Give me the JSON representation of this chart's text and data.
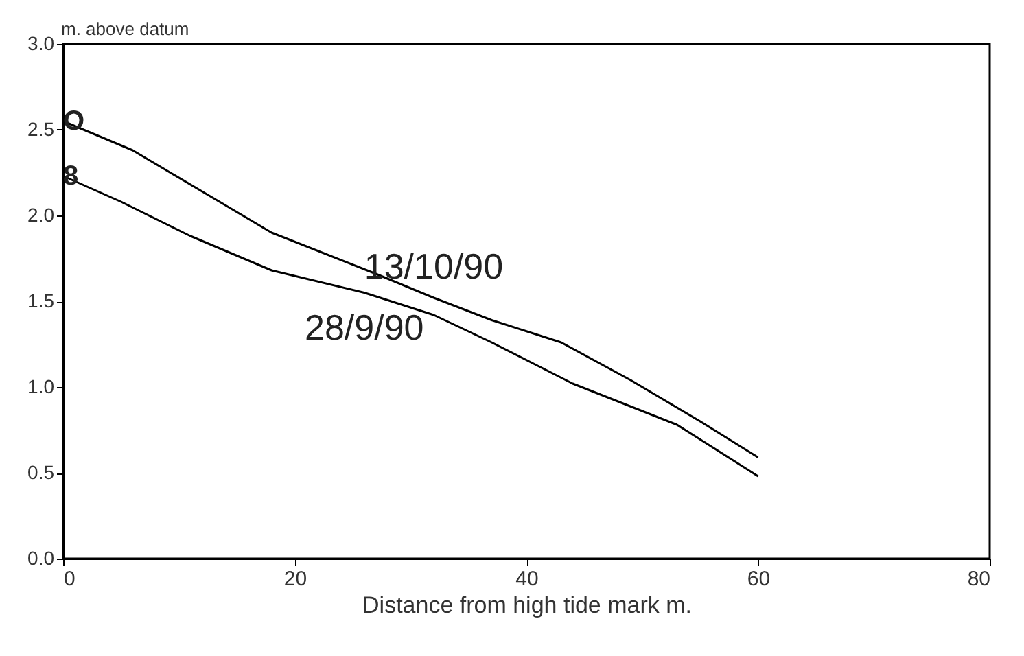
{
  "chart_data": {
    "type": "line",
    "xlabel": "Distance from high tide mark m.",
    "ylabel": "m. above datum",
    "xlim": [
      0,
      80
    ],
    "xticks": [
      0,
      20,
      40,
      60,
      80
    ],
    "ylim": [
      0,
      3
    ],
    "yticks": [
      {
        "value": 0,
        "label": "0.0"
      },
      0.5,
      {
        "value": 1,
        "label": "1.0"
      },
      1.5,
      {
        "value": 2,
        "label": "2.0"
      },
      2.5,
      {
        "value": 3,
        "label": "3.0"
      }
    ],
    "grid": false,
    "line_style": "solid",
    "series": [
      {
        "name": "13/10/90",
        "color": "#000000",
        "x": [
          0,
          6,
          12,
          18,
          27,
          32,
          37,
          43,
          49,
          55,
          60
        ],
        "values": [
          2.55,
          2.38,
          2.14,
          1.9,
          1.66,
          1.52,
          1.39,
          1.26,
          1.04,
          0.8,
          0.59
        ]
      },
      {
        "name": "28/9/90",
        "color": "#000000",
        "x": [
          0,
          5,
          11,
          18,
          26,
          32,
          37,
          44,
          53,
          60
        ],
        "values": [
          2.23,
          2.08,
          1.88,
          1.68,
          1.55,
          1.42,
          1.26,
          1.02,
          0.78,
          0.48
        ]
      }
    ],
    "annotations": [
      {
        "text": "O",
        "x": 0,
        "y": 2.55
      },
      {
        "text": "8",
        "x": 0,
        "y": 2.23
      }
    ]
  }
}
